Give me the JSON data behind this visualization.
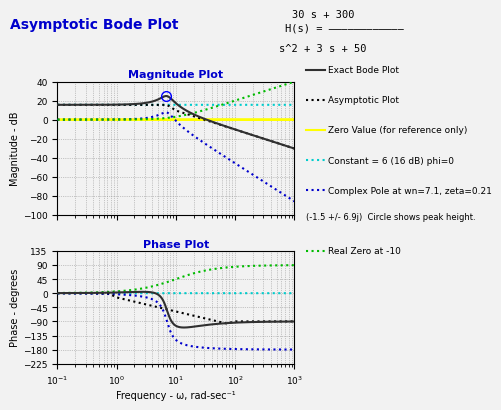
{
  "title": "Asymptotic Bode Plot",
  "numerator_text": "30 s + 300",
  "denominator_text": "s^2 + 3 s + 50",
  "mag_title": "Magnitude Plot",
  "phase_title": "Phase Plot",
  "xlabel": "Frequency - ω, rad-sec⁻¹",
  "ylabel_mag": "Magnitude - dB",
  "ylabel_phase": "Phase - degrees",
  "ylim_mag": [
    -100,
    40
  ],
  "ylim_phase": [
    -225,
    135
  ],
  "yticks_mag": [
    -100,
    -80,
    -60,
    -40,
    -20,
    0,
    20,
    40
  ],
  "yticks_phase": [
    -225,
    -180,
    -135,
    -90,
    -45,
    0,
    45,
    90,
    135
  ],
  "legend_entries": [
    "Exact Bode Plot",
    "Asymptotic Plot",
    "Zero Value (for reference only)",
    "Constant = 6 (16 dB) phi=0",
    "Complex Pole at wn=7.1, zeta=0.21",
    "(-1.5 +/- 6.9j)  Circle shows peak height.",
    "Real Zero at -10"
  ],
  "colors": {
    "exact": "#303030",
    "asymptotic": "#000000",
    "zero": "#ffff00",
    "constant": "#00cccc",
    "pole": "#0000cc",
    "zero_line": "#00bb00",
    "title": "#0000cc",
    "subtitle": "#0000cc"
  },
  "background_color": "#f2f2f2"
}
